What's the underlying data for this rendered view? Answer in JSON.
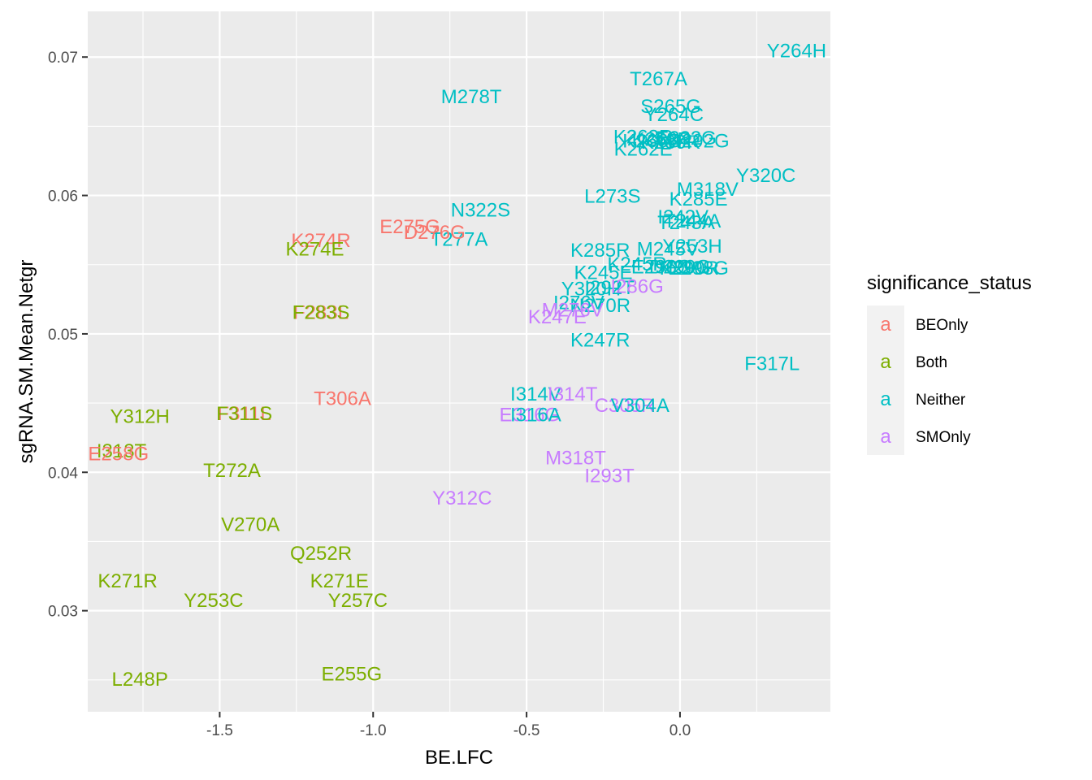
{
  "chart_data": {
    "type": "scatter",
    "xlabel": "BE.LFC",
    "ylabel": "sgRNA.SM.Mean.Netgr",
    "xlim": [
      -1.93,
      0.49
    ],
    "ylim": [
      0.0227,
      0.0733
    ],
    "x_ticks": [
      -1.5,
      -1.0,
      -0.5,
      0.0
    ],
    "x_tick_labels": [
      "-1.5",
      "-1.0",
      "-0.5",
      "0.0"
    ],
    "y_ticks": [
      0.03,
      0.04,
      0.05,
      0.06,
      0.07
    ],
    "y_tick_labels": [
      "0.03",
      "0.04",
      "0.05",
      "0.06",
      "0.07"
    ],
    "grid": true,
    "legend": {
      "title": "significance_status",
      "placement": "right",
      "key_glyph": "a",
      "entries": [
        {
          "name": "BEOnly",
          "color": "#F8766D"
        },
        {
          "name": "Both",
          "color": "#7CAE00"
        },
        {
          "name": "Neither",
          "color": "#00BFC4"
        },
        {
          "name": "SMOnly",
          "color": "#C77CFF"
        }
      ]
    },
    "points": [
      {
        "label": "Y264H",
        "x": 0.38,
        "y": 0.0705,
        "group": "Neither"
      },
      {
        "label": "T267A",
        "x": -0.07,
        "y": 0.0685,
        "group": "Neither"
      },
      {
        "label": "M278T",
        "x": -0.68,
        "y": 0.0672,
        "group": "Neither"
      },
      {
        "label": "S265G",
        "x": -0.03,
        "y": 0.0665,
        "group": "Neither"
      },
      {
        "label": "Y264C",
        "x": -0.02,
        "y": 0.0659,
        "group": "Neither"
      },
      {
        "label": "K263R",
        "x": -0.12,
        "y": 0.0643,
        "group": "Neither"
      },
      {
        "label": "K266R",
        "x": -0.09,
        "y": 0.064,
        "group": "Neither"
      },
      {
        "label": "K268R",
        "x": -0.06,
        "y": 0.0641,
        "group": "Neither"
      },
      {
        "label": "K289R",
        "x": -0.03,
        "y": 0.0639,
        "group": "Neither"
      },
      {
        "label": "E282G",
        "x": 0.02,
        "y": 0.0642,
        "group": "Neither"
      },
      {
        "label": "D292G",
        "x": 0.06,
        "y": 0.064,
        "group": "Neither"
      },
      {
        "label": "K262E",
        "x": -0.12,
        "y": 0.0634,
        "group": "Neither"
      },
      {
        "label": "Y320C",
        "x": 0.28,
        "y": 0.0615,
        "group": "Neither"
      },
      {
        "label": "M318V",
        "x": 0.09,
        "y": 0.0605,
        "group": "Neither"
      },
      {
        "label": "L273S",
        "x": -0.22,
        "y": 0.06,
        "group": "Neither"
      },
      {
        "label": "K285E",
        "x": 0.06,
        "y": 0.0598,
        "group": "Neither"
      },
      {
        "label": "N322S",
        "x": -0.65,
        "y": 0.059,
        "group": "Neither"
      },
      {
        "label": "I242V",
        "x": 0.01,
        "y": 0.0585,
        "group": "Neither"
      },
      {
        "label": "T244A",
        "x": 0.04,
        "y": 0.0582,
        "group": "Neither"
      },
      {
        "label": "T243A",
        "x": 0.02,
        "y": 0.0581,
        "group": "Neither"
      },
      {
        "label": "T277A",
        "x": -0.72,
        "y": 0.0569,
        "group": "Neither"
      },
      {
        "label": "K285R",
        "x": -0.26,
        "y": 0.0561,
        "group": "Neither"
      },
      {
        "label": "M245V",
        "x": -0.04,
        "y": 0.0562,
        "group": "Neither"
      },
      {
        "label": "Y253H",
        "x": 0.04,
        "y": 0.0564,
        "group": "Neither"
      },
      {
        "label": "K245R",
        "x": -0.14,
        "y": 0.0551,
        "group": "Neither"
      },
      {
        "label": "E296G",
        "x": -0.06,
        "y": 0.0549,
        "group": "Neither"
      },
      {
        "label": "D290G",
        "x": 0.0,
        "y": 0.0549,
        "group": "Neither"
      },
      {
        "label": "K290R",
        "x": 0.03,
        "y": 0.0548,
        "group": "Neither"
      },
      {
        "label": "E298G",
        "x": 0.06,
        "y": 0.0548,
        "group": "Neither"
      },
      {
        "label": "K245E",
        "x": -0.25,
        "y": 0.0545,
        "group": "Neither"
      },
      {
        "label": "Y320H",
        "x": -0.29,
        "y": 0.0533,
        "group": "Neither"
      },
      {
        "label": "I292T",
        "x": -0.23,
        "y": 0.0534,
        "group": "Neither"
      },
      {
        "label": "I286G",
        "x": -0.14,
        "y": 0.0535,
        "group": "SMOnly"
      },
      {
        "label": "I276V",
        "x": -0.33,
        "y": 0.0523,
        "group": "Neither"
      },
      {
        "label": "N270R",
        "x": -0.26,
        "y": 0.0521,
        "group": "Neither"
      },
      {
        "label": "M276V",
        "x": -0.35,
        "y": 0.0518,
        "group": "SMOnly"
      },
      {
        "label": "K247E",
        "x": -0.4,
        "y": 0.0513,
        "group": "SMOnly"
      },
      {
        "label": "K247R",
        "x": -0.26,
        "y": 0.0496,
        "group": "Neither"
      },
      {
        "label": "F317L",
        "x": 0.3,
        "y": 0.0479,
        "group": "Neither"
      },
      {
        "label": "K274R",
        "x": -1.17,
        "y": 0.0568,
        "group": "BEOnly"
      },
      {
        "label": "E275G",
        "x": -0.88,
        "y": 0.0578,
        "group": "BEOnly"
      },
      {
        "label": "D276G",
        "x": -0.8,
        "y": 0.0574,
        "group": "BEOnly"
      },
      {
        "label": "K274E",
        "x": -1.19,
        "y": 0.0562,
        "group": "Both"
      },
      {
        "label": "F283L",
        "x": -1.17,
        "y": 0.0516,
        "group": "BEOnly"
      },
      {
        "label": "F283S",
        "x": -1.17,
        "y": 0.0516,
        "group": "Both"
      },
      {
        "label": "T306A",
        "x": -1.1,
        "y": 0.0454,
        "group": "BEOnly"
      },
      {
        "label": "I314V",
        "x": -0.47,
        "y": 0.0457,
        "group": "Neither"
      },
      {
        "label": "I314T",
        "x": -0.35,
        "y": 0.0457,
        "group": "SMOnly"
      },
      {
        "label": "C305R",
        "x": -0.18,
        "y": 0.0449,
        "group": "SMOnly"
      },
      {
        "label": "V304A",
        "x": -0.13,
        "y": 0.0449,
        "group": "Neither"
      },
      {
        "label": "E316G",
        "x": -0.49,
        "y": 0.0442,
        "group": "SMOnly"
      },
      {
        "label": "I316A",
        "x": -0.47,
        "y": 0.0442,
        "group": "Neither"
      },
      {
        "label": "F311L",
        "x": -1.42,
        "y": 0.0443,
        "group": "BEOnly"
      },
      {
        "label": "F311S",
        "x": -1.42,
        "y": 0.0443,
        "group": "Both"
      },
      {
        "label": "Y312H",
        "x": -1.76,
        "y": 0.0441,
        "group": "Both"
      },
      {
        "label": "I313T",
        "x": -1.82,
        "y": 0.0416,
        "group": "Both"
      },
      {
        "label": "E258G",
        "x": -1.83,
        "y": 0.0414,
        "group": "BEOnly"
      },
      {
        "label": "M318T",
        "x": -0.34,
        "y": 0.0411,
        "group": "SMOnly"
      },
      {
        "label": "T272A",
        "x": -1.46,
        "y": 0.0402,
        "group": "Both"
      },
      {
        "label": "I293T",
        "x": -0.23,
        "y": 0.0398,
        "group": "SMOnly"
      },
      {
        "label": "Y312C",
        "x": -0.71,
        "y": 0.0382,
        "group": "SMOnly"
      },
      {
        "label": "V270A",
        "x": -1.4,
        "y": 0.0363,
        "group": "Both"
      },
      {
        "label": "Q252R",
        "x": -1.17,
        "y": 0.0342,
        "group": "Both"
      },
      {
        "label": "K271R",
        "x": -1.8,
        "y": 0.0322,
        "group": "Both"
      },
      {
        "label": "K271E",
        "x": -1.11,
        "y": 0.0322,
        "group": "Both"
      },
      {
        "label": "Y253C",
        "x": -1.52,
        "y": 0.0308,
        "group": "Both"
      },
      {
        "label": "Y257C",
        "x": -1.05,
        "y": 0.0308,
        "group": "Both"
      },
      {
        "label": "E255G",
        "x": -1.07,
        "y": 0.0255,
        "group": "Both"
      },
      {
        "label": "L248P",
        "x": -1.76,
        "y": 0.0251,
        "group": "Both"
      }
    ]
  },
  "theme": {
    "panel_bg": "#EBEBEB",
    "grid_major": "#FFFFFF",
    "axis_text": "#4D4D4D",
    "legend_key_bg": "#F2F2F2"
  }
}
